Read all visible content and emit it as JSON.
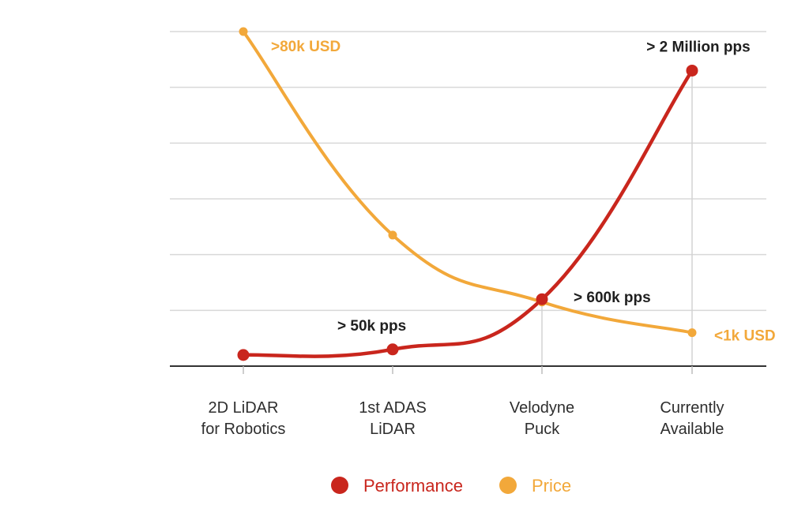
{
  "chart_data": {
    "type": "line",
    "title": "",
    "xlabel": "",
    "ylabel": "",
    "grid": true,
    "legend_position": "bottom-center",
    "categories": [
      [
        "2D LiDAR",
        "for Robotics"
      ],
      [
        "1st ADAS",
        "LiDAR"
      ],
      [
        "Velodyne",
        "Puck"
      ],
      [
        "Currently",
        "Available"
      ]
    ],
    "series": [
      {
        "name": "Performance",
        "color": "#c9261d",
        "values": [
          0.2,
          0.3,
          1.2,
          5.3
        ],
        "annotations": [
          {
            "index": 1,
            "text": "> 50k pps"
          },
          {
            "index": 2,
            "text": "> 600k pps"
          },
          {
            "index": 3,
            "text": "> 2 Million pps"
          }
        ]
      },
      {
        "name": "Price",
        "color": "#f2a83a",
        "values": [
          6.0,
          2.35,
          1.15,
          0.6
        ],
        "annotations": [
          {
            "index": 0,
            "text": ">80k USD"
          },
          {
            "index": 3,
            "text": "<1k USD"
          }
        ]
      }
    ],
    "ylim": [
      0,
      6
    ],
    "gridlines": [
      0,
      1,
      2,
      3,
      4,
      5,
      6
    ]
  }
}
